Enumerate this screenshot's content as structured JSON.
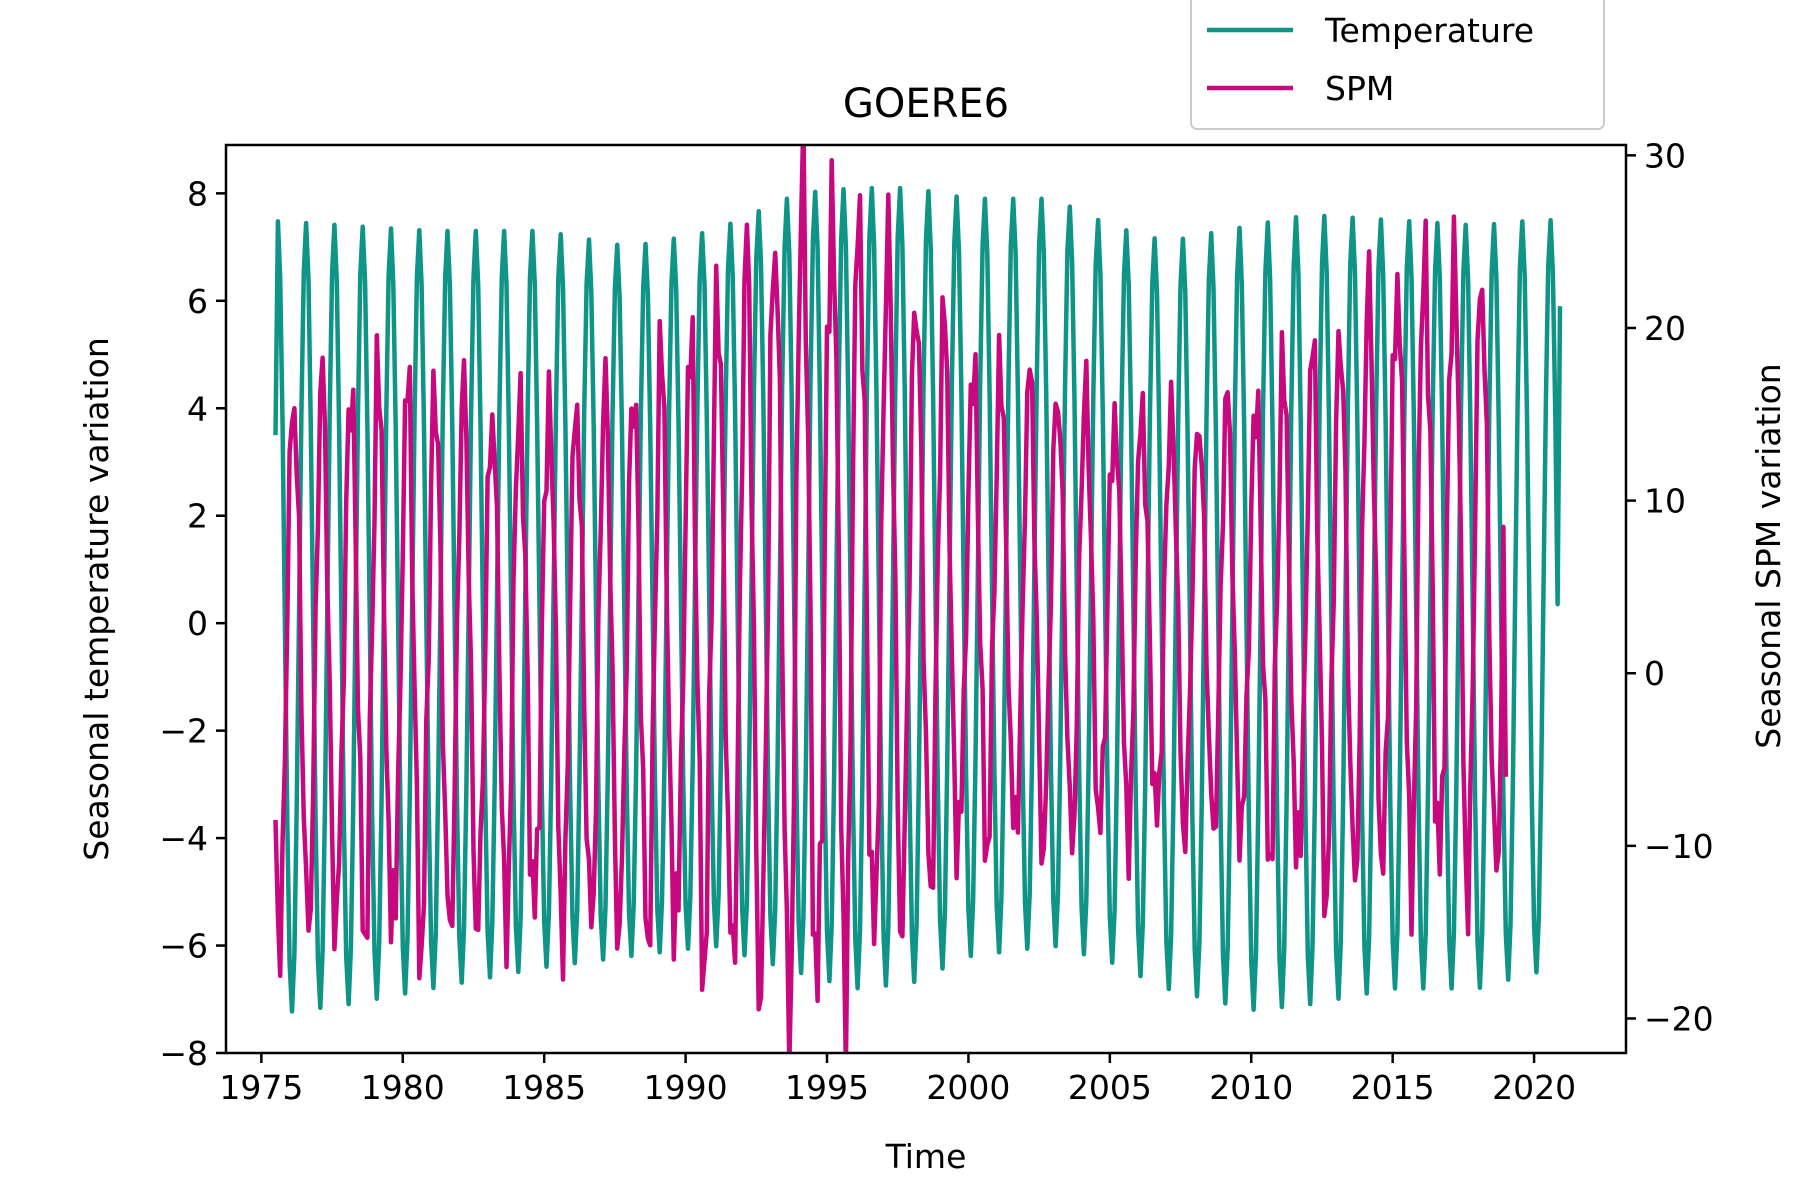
{
  "chart_data": {
    "type": "line",
    "title": "GOERE6",
    "xlabel": "Time",
    "ylabel_left": "Seasonal temperature variation",
    "ylabel_right": "Seasonal SPM variation",
    "xlim": [
      1973.75,
      2023.25
    ],
    "ylim_left": [
      -8,
      8.9
    ],
    "ylim_right": [
      -22,
      30.6
    ],
    "x_ticks": [
      1975,
      1980,
      1985,
      1990,
      1995,
      2000,
      2005,
      2010,
      2015,
      2020
    ],
    "y_ticks_left": [
      -8,
      -6,
      -4,
      -2,
      0,
      2,
      4,
      6,
      8
    ],
    "y_ticks_right": [
      -20,
      -10,
      0,
      10,
      20,
      30
    ],
    "legend_position": "top-right",
    "grid": false,
    "colors": {
      "temperature": "#0f9488",
      "spm": "#c8087e"
    },
    "series": [
      {
        "name": "Temperature",
        "axis": "left",
        "x_start": 1975.5,
        "x_end": 2020.9,
        "annual_cycle": {
          "peak_phase": 0.58,
          "trough_phase": 0.08,
          "start_value": 3.5,
          "end_value": 5.9
        },
        "amplitude_by_year": [
          [
            1975,
            7.5,
            -7.3
          ],
          [
            1978,
            7.4,
            -7.1
          ],
          [
            1981,
            7.3,
            -6.8
          ],
          [
            1985,
            7.3,
            -6.4
          ],
          [
            1988,
            7.0,
            -6.2
          ],
          [
            1991,
            7.3,
            -6.0
          ],
          [
            1994,
            8.0,
            -6.5
          ],
          [
            1996,
            8.1,
            -6.8
          ],
          [
            1998,
            8.1,
            -6.7
          ],
          [
            2000,
            7.9,
            -6.2
          ],
          [
            2003,
            7.9,
            -6.0
          ],
          [
            2005,
            7.4,
            -6.3
          ],
          [
            2007,
            7.1,
            -6.8
          ],
          [
            2010,
            7.4,
            -7.2
          ],
          [
            2012,
            7.6,
            -7.1
          ],
          [
            2015,
            7.5,
            -6.8
          ],
          [
            2018,
            7.4,
            -6.8
          ],
          [
            2020,
            7.5,
            -6.5
          ]
        ]
      },
      {
        "name": "SPM",
        "axis": "right",
        "x_start": 1975.5,
        "x_end": 2019.0,
        "annual_cycle": {
          "peak_phase": 0.15,
          "trough_phase": 0.62,
          "start_value": -8.5,
          "end_value": -6.0
        },
        "amplitude_by_year": [
          [
            1975,
            16,
            -15
          ],
          [
            1978,
            17,
            -15
          ],
          [
            1981,
            17,
            -16
          ],
          [
            1984,
            15,
            -14
          ],
          [
            1987,
            16,
            -15
          ],
          [
            1990,
            19,
            -16
          ],
          [
            1992,
            24,
            -18
          ],
          [
            1994,
            28,
            -20
          ],
          [
            1996,
            27,
            -17
          ],
          [
            1998,
            23,
            -14
          ],
          [
            2000,
            18,
            -10
          ],
          [
            2003,
            17,
            -10
          ],
          [
            2005,
            15,
            -9
          ],
          [
            2008,
            15,
            -9
          ],
          [
            2010,
            16,
            -10
          ],
          [
            2013,
            20,
            -13
          ],
          [
            2015,
            23,
            -11
          ],
          [
            2017,
            24,
            -12
          ],
          [
            2018.5,
            23,
            -12
          ]
        ]
      }
    ]
  }
}
